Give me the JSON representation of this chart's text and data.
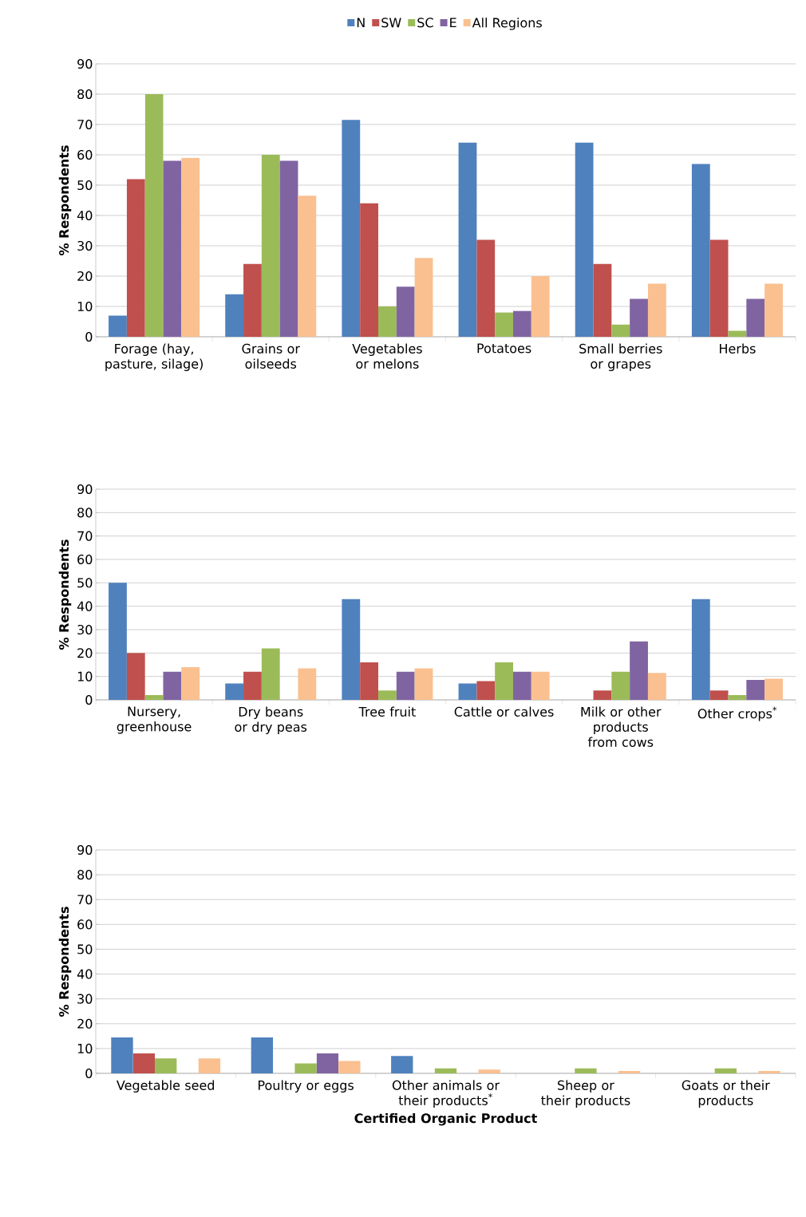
{
  "chart_data": [
    {
      "type": "bar",
      "ylabel": "% Respondents",
      "legend": "top",
      "grid": "y",
      "ylim": [
        0,
        90
      ],
      "yticks": [
        0,
        10,
        20,
        30,
        40,
        50,
        60,
        70,
        80,
        90
      ],
      "categories": [
        "Forage (hay, pasture, silage)",
        "Grains or oilseeds",
        "Vegetables or melons",
        "Potatoes",
        "Small berries or grapes",
        "Herbs"
      ],
      "series": [
        {
          "name": "N",
          "color": "#4f81bd",
          "values": [
            7,
            14,
            71.5,
            64,
            64,
            57
          ]
        },
        {
          "name": "SW",
          "color": "#c0504d",
          "values": [
            52,
            24,
            44,
            32,
            24,
            32
          ]
        },
        {
          "name": "SC",
          "color": "#9bbb59",
          "values": [
            80,
            60,
            10,
            8,
            4,
            2
          ]
        },
        {
          "name": "E",
          "color": "#8064a2",
          "values": [
            58,
            58,
            16.5,
            8.5,
            12.5,
            12.5
          ]
        },
        {
          "name": "All Regions",
          "color": "#fac090",
          "values": [
            59,
            46.5,
            26,
            20,
            17.5,
            17.5
          ]
        }
      ]
    },
    {
      "type": "bar",
      "ylabel": "% Respondents",
      "grid": "y",
      "ylim": [
        0,
        90
      ],
      "yticks": [
        0,
        10,
        20,
        30,
        40,
        50,
        60,
        70,
        80,
        90
      ],
      "categories": [
        "Nursery, greenhouse",
        "Dry beans or dry peas",
        "Tree fruit",
        "Cattle or calves",
        "Milk or other products from cows",
        "Other crops$^{*}$"
      ],
      "series": [
        {
          "color": "#4f81bd",
          "values": [
            50,
            7,
            43,
            7,
            null,
            43
          ]
        },
        {
          "color": "#c0504d",
          "values": [
            20,
            12,
            16,
            8,
            4,
            4
          ]
        },
        {
          "color": "#9bbb59",
          "values": [
            2,
            22,
            4,
            16,
            12,
            2
          ]
        },
        {
          "color": "#8064a2",
          "values": [
            12,
            null,
            12,
            12,
            25,
            8.5
          ]
        },
        {
          "color": "#fac090",
          "values": [
            14,
            13.5,
            13.5,
            12,
            11.5,
            9
          ]
        }
      ]
    },
    {
      "type": "bar",
      "ylabel": "% Respondents",
      "xlabel": "Certified Organic Product",
      "grid": "y",
      "ylim": [
        0,
        90
      ],
      "yticks": [
        0,
        10,
        20,
        30,
        40,
        50,
        60,
        70,
        80,
        90
      ],
      "categories": [
        "Vegetable seed",
        "Poultry or eggs",
        "Other animals or their products$^{*}$",
        "Sheep or their products",
        "Goats or their products"
      ],
      "series": [
        {
          "color": "#4f81bd",
          "values": [
            14.5,
            14.5,
            7,
            null,
            null
          ]
        },
        {
          "color": "#c0504d",
          "values": [
            8,
            null,
            null,
            null,
            null
          ]
        },
        {
          "color": "#9bbb59",
          "values": [
            6,
            4,
            2,
            2,
            2
          ]
        },
        {
          "color": "#8064a2",
          "values": [
            null,
            8,
            null,
            null,
            null
          ]
        },
        {
          "color": "#fac090",
          "values": [
            6,
            5,
            1.5,
            1,
            1
          ]
        }
      ]
    }
  ]
}
